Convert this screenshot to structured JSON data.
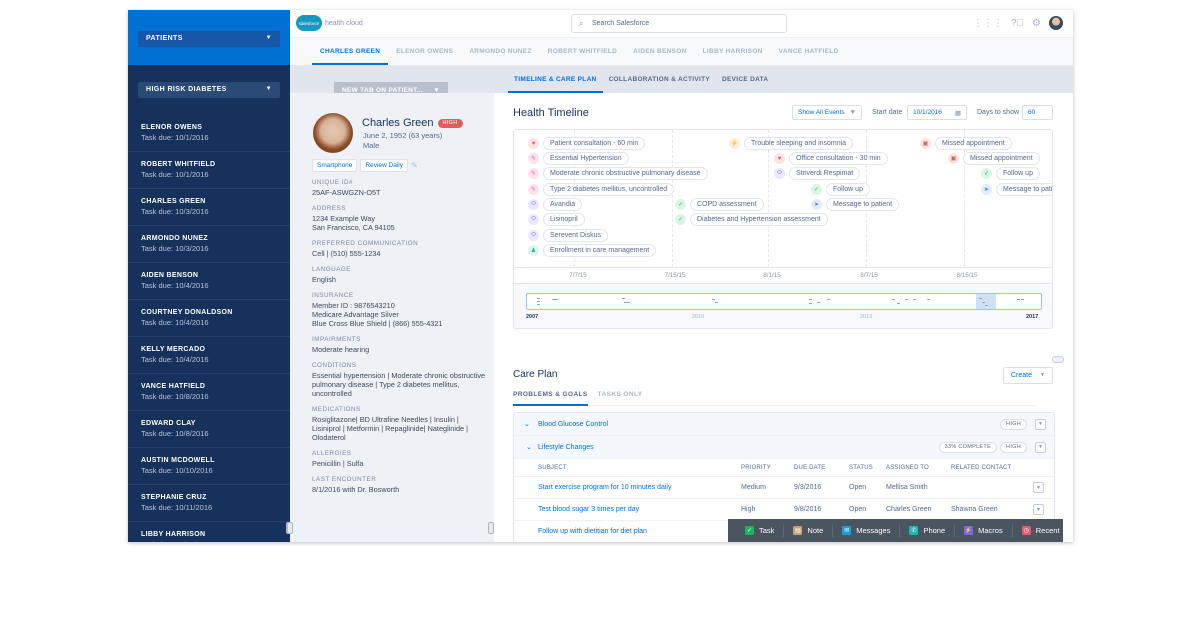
{
  "colors": {
    "brand": "#0070d2",
    "sidebar": "#16325c",
    "high_badge": "#e25c5c"
  },
  "sidebar": {
    "top_dropdown": "PATIENTS",
    "list_dropdown": "HIGH RISK DIABETES",
    "items": [
      {
        "name": "ELENOR OWENS",
        "due": "Task due: 10/1/2016"
      },
      {
        "name": "ROBERT WHITFIELD",
        "due": "Task due: 10/1/2016"
      },
      {
        "name": "CHARLES GREEN",
        "due": "Task due: 10/3/2016"
      },
      {
        "name": "ARMONDO NUNEZ",
        "due": "Task due: 10/3/2016"
      },
      {
        "name": "AIDEN BENSON",
        "due": "Task due: 10/4/2016"
      },
      {
        "name": "COURTNEY DONALDSON",
        "due": "Task due: 10/4/2016"
      },
      {
        "name": "KELLY MERCADO",
        "due": "Task due: 10/4/2016"
      },
      {
        "name": "VANCE HATFIELD",
        "due": "Task due: 10/8/2016"
      },
      {
        "name": "EDWARD CLAY",
        "due": "Task due: 10/8/2016"
      },
      {
        "name": "AUSTIN MCDOWELL",
        "due": "Task due: 10/10/2016"
      },
      {
        "name": "STEPHANIE CRUZ",
        "due": "Task due: 10/11/2016"
      },
      {
        "name": "LIBBY HARRISON",
        "due": "Task due: 10/12/2016"
      }
    ]
  },
  "header": {
    "logo_brand": "salesforce",
    "logo_product": "health cloud",
    "search_placeholder": "Search Salesforce"
  },
  "patient_tabs": [
    "CHARLES GREEN",
    "ELENOR OWENS",
    "ARMONDO NUNEZ",
    "ROBERT WHITFIELD",
    "AIDEN BENSON",
    "LIBBY HARRISON",
    "VANCE HATFIELD"
  ],
  "new_tab": "NEW TAB ON PATIENT...",
  "sub_tabs": [
    "TIMELINE & CARE PLAN",
    "COLLABORATION & ACTIVITY",
    "DEVICE DATA"
  ],
  "patient": {
    "name": "Charles Green",
    "risk": "HIGH",
    "dob": "June 2, 1952 (63 years)",
    "gender": "Male",
    "chips": [
      "Smartphone",
      "Review Daily"
    ],
    "fields": [
      {
        "label": "UNIQUE ID#",
        "value": "25AF-ASWGZN-O5T"
      },
      {
        "label": "ADDRESS",
        "value": "1234 Example Way\nSan Francisco, CA 94105"
      },
      {
        "label": "PREFERRED COMMUNICATION",
        "value": "Cell | (510) 555-1234"
      },
      {
        "label": "LANGUAGE",
        "value": "English"
      },
      {
        "label": "INSURANCE",
        "value": "Member ID : 9876543210\nMedicare Advantage Silver\nBlue Cross Blue Shield | (866) 555-4321"
      },
      {
        "label": "IMPAIRMENTS",
        "value": "Moderate hearing"
      },
      {
        "label": "CONDITIONS",
        "value": "Essential hypertension | Moderate chronic obstructive pulmonary disease | Type 2 diabetes mellitus, uncontrolled"
      },
      {
        "label": "MEDICATIONS",
        "value": "Rosiglitazone| BD Ultrafine Needles | Insulin | Lisiniprol | Metformin | Repaglinide| Nateglinide | Olodaterol"
      },
      {
        "label": "ALLERGIES",
        "value": "Penicillin | Sulfa"
      },
      {
        "label": "LAST ENCOUNTER",
        "value": "8/1/2016 with Dr. Bosworth"
      }
    ]
  },
  "timeline": {
    "title": "Health Timeline",
    "filter": "Show All Events",
    "start_label": "Start date",
    "start_value": "10/1/2016",
    "days_label": "Days to show",
    "days_value": "60",
    "events": [
      {
        "label": "Patient consultation - 60 min",
        "icon": "heart"
      },
      {
        "label": "Essential Hypertension",
        "icon": "condition"
      },
      {
        "label": "Moderate chronic obstructive pulmonary disease",
        "icon": "condition"
      },
      {
        "label": "Type 2 diabetes mellitus, uncontrolled",
        "icon": "condition"
      },
      {
        "label": "Avandia",
        "icon": "pill"
      },
      {
        "label": "Lisinopril",
        "icon": "pill"
      },
      {
        "label": "Serevent Diskus",
        "icon": "pill"
      },
      {
        "label": "Enrollment in care management",
        "icon": "person"
      },
      {
        "label": "COPD assessment",
        "icon": "check"
      },
      {
        "label": "Diabetes and Hypertension assessment",
        "icon": "check"
      },
      {
        "label": "Trouble sleeping and insomnia",
        "icon": "bolt"
      },
      {
        "label": "Office consultation - 30 min",
        "icon": "heart"
      },
      {
        "label": "Striverdi Respimat",
        "icon": "pill"
      },
      {
        "label": "Follow up",
        "icon": "check"
      },
      {
        "label": "Message to patient",
        "icon": "send"
      },
      {
        "label": "Missed appointment",
        "icon": "calendar"
      },
      {
        "label": "Missed appointment",
        "icon": "calendar"
      },
      {
        "label": "Follow up",
        "icon": "check"
      },
      {
        "label": "Message to pati",
        "icon": "send"
      }
    ],
    "axis_ticks": [
      "7/7/15",
      "7/15/15",
      "8/1/15",
      "8/7/15",
      "8/15/15"
    ],
    "overview_labels": [
      "2007",
      "2010",
      "2013",
      "2017"
    ]
  },
  "care_plan": {
    "title": "Care Plan",
    "create": "Create",
    "tabs": [
      "PROBLEMS & GOALS",
      "TASKS ONLY"
    ],
    "problem": {
      "name": "Blood Glucose Control",
      "priority": "HIGH"
    },
    "goal": {
      "name": "Lifestyle Changes",
      "progress": "33% COMPLETE",
      "priority": "HIGH"
    },
    "columns": [
      "SUBJECT",
      "PRIORITY",
      "DUE DATE",
      "STATUS",
      "ASSIGNED TO",
      "RELATED CONTACT"
    ],
    "rows": [
      {
        "subject": "Start exercise program for 10 minutes daily",
        "priority": "Medium",
        "due": "9/3/2016",
        "status": "Open",
        "assigned": "Mellisa Smith",
        "contact": ""
      },
      {
        "subject": "Test blood sugar 3 times per day",
        "priority": "High",
        "due": "9/8/2016",
        "status": "Open",
        "assigned": "Charles Green",
        "contact": "Shawna Green"
      },
      {
        "subject": "Follow up with dietitian for diet plan",
        "priority": "",
        "due": "",
        "status": "",
        "assigned": "",
        "contact": ""
      }
    ]
  },
  "utility_bar": [
    {
      "label": "Task",
      "icon": "task",
      "color": "#1fb35e"
    },
    {
      "label": "Note",
      "icon": "note",
      "color": "#c7a27a"
    },
    {
      "label": "Messages",
      "icon": "email",
      "color": "#1b9ede"
    },
    {
      "label": "Phone",
      "icon": "phone",
      "color": "#22b5b5"
    },
    {
      "label": "Macros",
      "icon": "macro",
      "color": "#7a6ae0"
    },
    {
      "label": "Recent",
      "icon": "recent",
      "color": "#e45c6e"
    }
  ]
}
